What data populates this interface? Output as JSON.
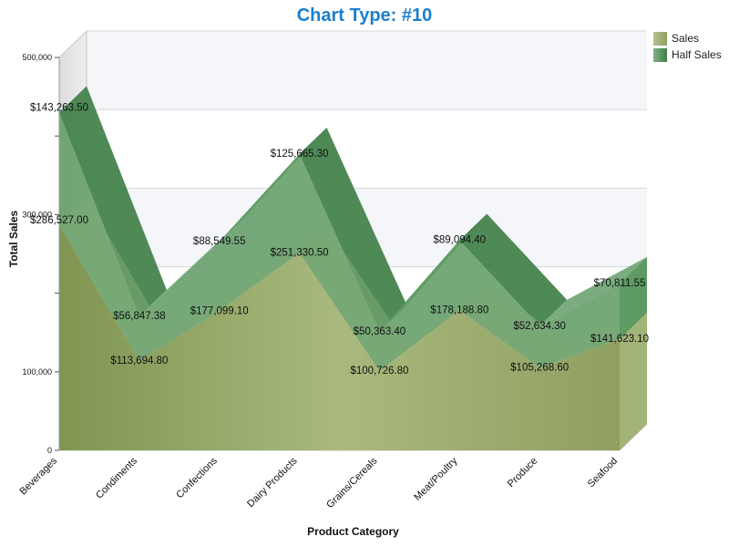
{
  "title": "Chart Type: #10",
  "legend": [
    {
      "name": "Sales",
      "color": "#9fae74"
    },
    {
      "name": "Half Sales",
      "color": "#4f8f55"
    }
  ],
  "chart_data": {
    "type": "area",
    "subtype": "3d-stacked-area",
    "title": "Chart Type: #10",
    "xlabel": "Product Category",
    "ylabel": "Total Sales",
    "categories": [
      "Beverages",
      "Condiments",
      "Confections",
      "Dairy Products",
      "Grains/Cereals",
      "Meat/Poultry",
      "Produce",
      "Seafood"
    ],
    "series": [
      {
        "name": "Sales",
        "values": [
          286527.0,
          113694.8,
          177099.1,
          251330.5,
          100726.8,
          178188.8,
          105268.6,
          141623.1
        ],
        "labels": [
          "$286,527.00",
          "$113,694.80",
          "$177,099.10",
          "$251,330.50",
          "$100,726.80",
          "$178,188.80",
          "$105,268.60",
          "$141,623.10"
        ]
      },
      {
        "name": "Half Sales",
        "values": [
          143263.5,
          56847.38,
          88549.55,
          125665.3,
          50363.4,
          89094.4,
          52634.3,
          70811.55
        ],
        "labels": [
          "$143,263.50",
          "$56,847.38",
          "$88,549.55",
          "$125,665.30",
          "$50,363.40",
          "$89,094.40",
          "$52,634.30",
          "$70,811.55"
        ]
      }
    ],
    "y_ticks": [
      "0",
      "100,000",
      "300,000",
      "500,000"
    ],
    "ylim": [
      0,
      500000
    ],
    "grid": true,
    "legend_position": "top-right"
  }
}
